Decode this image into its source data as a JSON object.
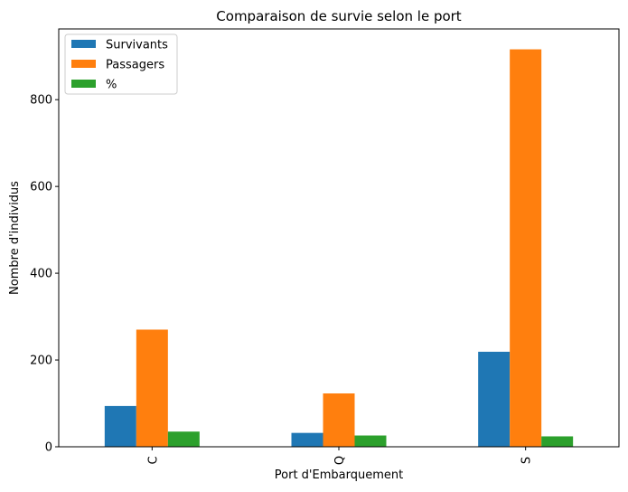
{
  "chart_data": {
    "type": "bar",
    "title": "Comparaison de survie selon le port",
    "xlabel": "Port d'Embarquement",
    "ylabel": "Nombre d'individus",
    "categories": [
      "C",
      "Q",
      "S"
    ],
    "series": [
      {
        "name": "Survivants",
        "color": "#1f77b4",
        "values": [
          94,
          32,
          219
        ]
      },
      {
        "name": "Passagers",
        "color": "#ff7f0e",
        "values": [
          270,
          123,
          916
        ]
      },
      {
        "name": "%",
        "color": "#2ca02c",
        "values": [
          35,
          26,
          24
        ]
      }
    ],
    "ylim": [
      0,
      963
    ],
    "yticks": [
      0,
      200,
      400,
      600,
      800
    ],
    "grid": false,
    "legend_position": "top-left"
  }
}
